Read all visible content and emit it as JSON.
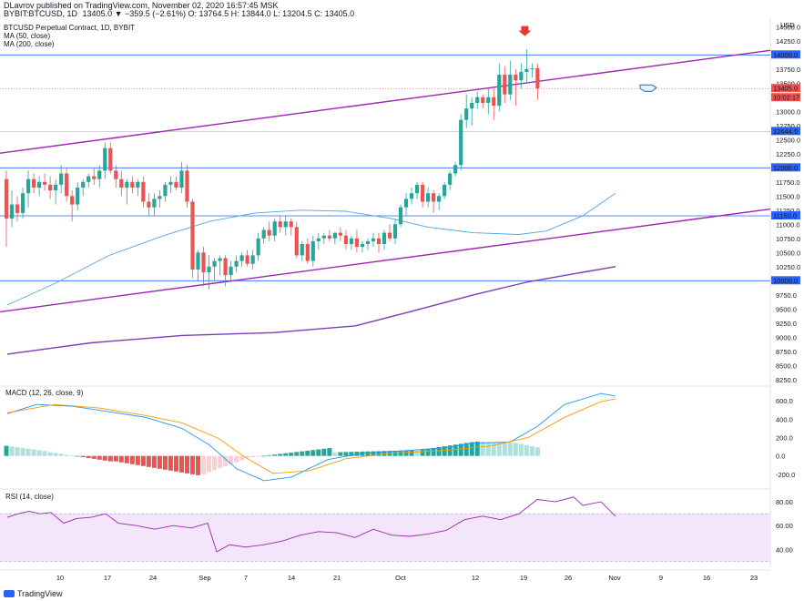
{
  "header": {
    "publisher_line": "DLavrov published on TradingView.com, November 02, 2020 16:57:45 MSK",
    "symbol": "BYBIT:BTCUSD, 1D",
    "ohlc": "13405.0 ▼ −359.5 (−2.61%) O: 13764.5 H: 13844.0 L: 13204.5 C: 13405.0",
    "title": "BTCUSD Perpetual Contract, 1D, BYBIT",
    "ma50_label": "MA (50, close)",
    "ma200_label": "MA (200, close)"
  },
  "currency": "USD",
  "macd_label": "MACD (12, 26, close, 9)",
  "rsi_label": "RSI (14, close)",
  "footer": {
    "brand": "TradingView"
  },
  "colors": {
    "up": "#26a69a",
    "down": "#ef5350",
    "ma50": "#4fa8e0",
    "ma200": "#7b3fb5",
    "channel": "#9c27b0",
    "hline": "#2962ff",
    "macd_line": "#2196f3",
    "signal_line": "#ff9800",
    "rsi_line": "#9c27b0",
    "rsi_band": "#f3e5fa"
  },
  "chart_data": {
    "type": "candlestick",
    "price_axis": {
      "ticks": [
        14500,
        14250,
        14000,
        13750,
        13500,
        13250,
        13000,
        12750,
        12500,
        12250,
        12000,
        11750,
        11500,
        11250,
        11000,
        10750,
        10500,
        10250,
        10000,
        9750,
        9500,
        9250,
        9000,
        8750,
        8500,
        8250
      ],
      "ylim": [
        8150,
        14650
      ]
    },
    "x_ticks": [
      "10",
      "17",
      "24",
      "Sep",
      "7",
      "14",
      "21",
      "Oct",
      "12",
      "19",
      "26",
      "Nov",
      "9",
      "16",
      "23"
    ],
    "price_tags": [
      {
        "label": "14000.0",
        "value": 14000,
        "kind": "hline"
      },
      {
        "label": "13405.0",
        "value": 13405,
        "kind": "last"
      },
      {
        "label": "10:02:17",
        "value": 13405,
        "kind": "timer"
      },
      {
        "label": "12644.5",
        "value": 12644.5,
        "kind": "hline"
      },
      {
        "label": "12000.0",
        "value": 12000,
        "kind": "hline"
      },
      {
        "label": "11150.0",
        "value": 11150,
        "kind": "hline"
      },
      {
        "label": "10000.0",
        "value": 10000,
        "kind": "hline"
      }
    ],
    "horizontal_lines": [
      14000,
      12644.5,
      12000,
      11150,
      10000
    ],
    "candles": [
      [
        11800,
        11950,
        10600,
        11100
      ],
      [
        11100,
        11600,
        10950,
        11350
      ],
      [
        11350,
        11500,
        11050,
        11200
      ],
      [
        11200,
        11650,
        11100,
        11550
      ],
      [
        11550,
        11950,
        11300,
        11800
      ],
      [
        11800,
        11900,
        11550,
        11650
      ],
      [
        11650,
        11850,
        11500,
        11750
      ],
      [
        11750,
        11900,
        11600,
        11700
      ],
      [
        11700,
        11850,
        11450,
        11600
      ],
      [
        11600,
        11800,
        11350,
        11700
      ],
      [
        11700,
        12050,
        11550,
        11900
      ],
      [
        11900,
        12000,
        11400,
        11500
      ],
      [
        11500,
        11600,
        11050,
        11350
      ],
      [
        11350,
        11750,
        11250,
        11650
      ],
      [
        11650,
        11800,
        11500,
        11750
      ],
      [
        11750,
        11900,
        11650,
        11850
      ],
      [
        11850,
        12000,
        11700,
        11800
      ],
      [
        11800,
        12050,
        11650,
        11950
      ],
      [
        11950,
        12450,
        11800,
        12350
      ],
      [
        12350,
        12450,
        11900,
        11950
      ],
      [
        11950,
        12050,
        11650,
        11800
      ],
      [
        11800,
        11950,
        11500,
        11650
      ],
      [
        11650,
        11800,
        11350,
        11750
      ],
      [
        11750,
        11850,
        11550,
        11650
      ],
      [
        11650,
        11800,
        11500,
        11750
      ],
      [
        11750,
        11850,
        11300,
        11400
      ],
      [
        11400,
        11550,
        11150,
        11300
      ],
      [
        11300,
        11550,
        11150,
        11450
      ],
      [
        11450,
        11600,
        11300,
        11500
      ],
      [
        11500,
        11750,
        11400,
        11700
      ],
      [
        11700,
        11850,
        11550,
        11750
      ],
      [
        11750,
        11850,
        11600,
        11650
      ],
      [
        11650,
        12100,
        11550,
        11950
      ],
      [
        11950,
        12050,
        11300,
        11400
      ],
      [
        11400,
        11450,
        10050,
        10200
      ],
      [
        10200,
        10550,
        10000,
        10500
      ],
      [
        10500,
        10600,
        9900,
        10150
      ],
      [
        10150,
        10450,
        9850,
        10250
      ],
      [
        10250,
        10400,
        10000,
        10350
      ],
      [
        10350,
        10450,
        10100,
        10400
      ],
      [
        10400,
        10450,
        9900,
        10100
      ],
      [
        10100,
        10350,
        10000,
        10250
      ],
      [
        10250,
        10450,
        10150,
        10350
      ],
      [
        10350,
        10500,
        10250,
        10450
      ],
      [
        10450,
        10550,
        10250,
        10300
      ],
      [
        10300,
        10550,
        10200,
        10450
      ],
      [
        10450,
        10850,
        10350,
        10750
      ],
      [
        10750,
        10950,
        10650,
        10900
      ],
      [
        10900,
        11050,
        10700,
        10800
      ],
      [
        10800,
        11100,
        10700,
        11050
      ],
      [
        11050,
        11150,
        10850,
        10950
      ],
      [
        10950,
        11150,
        10800,
        11050
      ],
      [
        11050,
        11100,
        10800,
        10950
      ],
      [
        10950,
        11050,
        10400,
        10450
      ],
      [
        10450,
        10700,
        10350,
        10650
      ],
      [
        10650,
        10750,
        10300,
        10350
      ],
      [
        10350,
        10800,
        10250,
        10700
      ],
      [
        10700,
        10850,
        10550,
        10750
      ],
      [
        10750,
        10850,
        10650,
        10800
      ],
      [
        10800,
        10900,
        10700,
        10750
      ],
      [
        10750,
        10850,
        10650,
        10850
      ],
      [
        10850,
        10950,
        10700,
        10800
      ],
      [
        10800,
        10900,
        10550,
        10650
      ],
      [
        10650,
        10800,
        10550,
        10750
      ],
      [
        10750,
        10900,
        10500,
        10600
      ],
      [
        10600,
        10700,
        10500,
        10650
      ],
      [
        10650,
        10750,
        10550,
        10700
      ],
      [
        10700,
        10850,
        10600,
        10750
      ],
      [
        10750,
        10850,
        10500,
        10650
      ],
      [
        10650,
        10900,
        10550,
        10850
      ],
      [
        10850,
        11000,
        10700,
        10750
      ],
      [
        10750,
        11100,
        10650,
        11000
      ],
      [
        11000,
        11350,
        10950,
        11300
      ],
      [
        11300,
        11550,
        11150,
        11450
      ],
      [
        11450,
        11650,
        11350,
        11550
      ],
      [
        11550,
        11750,
        11450,
        11700
      ],
      [
        11700,
        11750,
        11300,
        11400
      ],
      [
        11400,
        11650,
        11300,
        11550
      ],
      [
        11550,
        11600,
        11200,
        11400
      ],
      [
        11400,
        11550,
        11250,
        11500
      ],
      [
        11500,
        11750,
        11450,
        11700
      ],
      [
        11700,
        11950,
        11600,
        11900
      ],
      [
        11900,
        12100,
        11850,
        12050
      ],
      [
        12050,
        12950,
        11950,
        12850
      ],
      [
        12850,
        13300,
        12700,
        13050
      ],
      [
        13050,
        13250,
        12750,
        13150
      ],
      [
        13150,
        13350,
        13050,
        13250
      ],
      [
        13250,
        13300,
        13050,
        13150
      ],
      [
        13150,
        13400,
        12950,
        13250
      ],
      [
        13250,
        13400,
        12850,
        13100
      ],
      [
        13100,
        13850,
        13000,
        13650
      ],
      [
        13650,
        13800,
        13150,
        13300
      ],
      [
        13300,
        13900,
        13200,
        13650
      ],
      [
        13650,
        13750,
        13100,
        13550
      ],
      [
        13550,
        13850,
        13400,
        13700
      ],
      [
        13700,
        14100,
        13500,
        13750
      ],
      [
        13750,
        13850,
        13600,
        13760
      ],
      [
        13764.5,
        13844,
        13204.5,
        13405
      ]
    ],
    "ma50": {
      "start": 9570,
      "mid": [
        10400,
        11000,
        11300,
        11150,
        10850,
        10830
      ],
      "end": 11550
    },
    "ma200": {
      "start": 8700,
      "end": 10250
    },
    "macd": {
      "axis_ticks": [
        600,
        400,
        200,
        0,
        -200
      ],
      "ylim": [
        -350,
        750
      ]
    },
    "rsi": {
      "axis_ticks": [
        80,
        60,
        40
      ],
      "band": [
        30,
        70
      ],
      "ylim": [
        25,
        90
      ]
    }
  }
}
